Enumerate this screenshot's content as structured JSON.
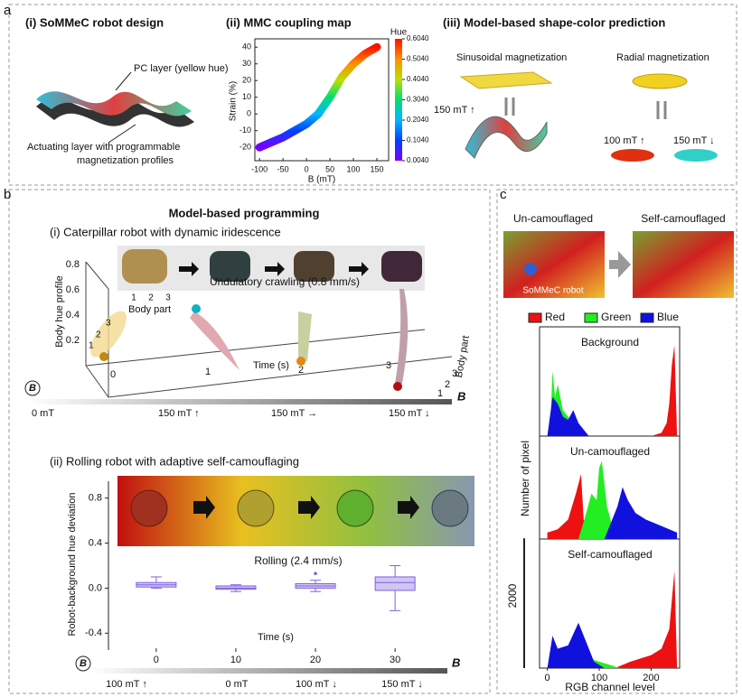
{
  "figure": {
    "a": {
      "label": "a",
      "i": {
        "title": "(i) SoMMeC robot design",
        "pc_layer": "PC layer (yellow hue)",
        "actuating": [
          "Actuating layer with programmable",
          "magnetization profiles"
        ]
      },
      "iii": {
        "title": "(iii) Model-based  shape-color prediction",
        "sinusoidal": "Sinusoidal magnetization",
        "radial": "Radial magnetization",
        "field_1": "150 mT ↑",
        "field_2": "100 mT ↑",
        "field_3": "150 mT ↓"
      }
    },
    "b": {
      "label": "b",
      "title": "Model-based programming",
      "i": {
        "title": "(i) Caterpillar robot with dynamic iridescence",
        "body_part": "Body part",
        "parts": [
          "1",
          "2",
          "3"
        ],
        "crawling": "Undulatory crawling (0.8 mm/s)",
        "y_label": "Body hue profile",
        "y_ticks": [
          "0.2",
          "0.4",
          "0.6",
          "0.8"
        ],
        "x_label": "Time (s)",
        "x_ticks": [
          "0",
          "1",
          "2",
          "3"
        ],
        "z_label": "Body part",
        "z_ticks": [
          "1",
          "2",
          "3"
        ],
        "marker_labels": [
          "1",
          "2",
          "3"
        ],
        "rotation_symbol": "B",
        "fields": [
          "0 mT",
          "150 mT ↑",
          "150 mT →",
          "150 mT ↓"
        ],
        "field_symbol": "B"
      },
      "ii": {
        "rolling": "Rolling (2.4 mm/s)",
        "rotation_symbol": "B",
        "fields": [
          "100 mT ↑",
          "0 mT",
          "100 mT ↓",
          "150 mT ↓"
        ],
        "field_symbol": "B"
      }
    },
    "c": {
      "label": "c",
      "uncamo": "Un-camouflaged",
      "selfcamo": "Self-camouflaged",
      "robot": "SoMMeC robot"
    }
  },
  "chart_data": [
    {
      "type": "line",
      "title": "(ii) MMC coupling map",
      "x_label": "B (mT)",
      "y_label": "Strain (%)",
      "x": [
        -100,
        -75,
        -50,
        -25,
        0,
        25,
        50,
        75,
        100,
        125,
        150
      ],
      "values": [
        -20,
        -17,
        -14,
        -10,
        -6,
        0,
        10,
        22,
        30,
        36,
        40
      ],
      "xlim": [
        -110,
        175
      ],
      "xticks": [
        -100,
        -50,
        0,
        50,
        100,
        150
      ],
      "ylim": [
        -28,
        45
      ],
      "yticks": [
        -20,
        -10,
        0,
        10,
        20,
        30,
        40
      ],
      "colorbar": {
        "title": "Hue",
        "lim": [
          0.004,
          0.604
        ],
        "ticks": [
          {
            "value": 0.604,
            "label": "0.6040"
          },
          {
            "value": 0.504,
            "label": "0.5040"
          },
          {
            "value": 0.404,
            "label": "0.4040"
          },
          {
            "value": 0.304,
            "label": "0.3040"
          },
          {
            "value": 0.204,
            "label": "0.2040"
          },
          {
            "value": 0.104,
            "label": "0.1040"
          },
          {
            "value": 0.004,
            "label": "0.0040"
          }
        ],
        "colors": [
          "#7a00ff",
          "#0040ff",
          "#00b8ff",
          "#00e070",
          "#b8e000",
          "#ff9000",
          "#ff1000"
        ]
      }
    },
    {
      "type": "box",
      "title": "(ii) Rolling robot with adaptive self-camouflaging",
      "x_label": "Time (s)",
      "y_label": "Robot-background hue deviation",
      "x": [
        0,
        10,
        20,
        30
      ],
      "xlim": [
        -6,
        36
      ],
      "xticks": [
        0,
        10,
        20,
        30
      ],
      "ylim": [
        -0.55,
        0.95
      ],
      "yticks": [
        -0.4,
        {
          "value": 0,
          "label": "0.0"
        },
        0.4,
        0.8
      ],
      "color": "#8060e0",
      "fill": "#cfc6f4",
      "boxes": [
        {
          "min": 0,
          "q1": 0.01,
          "median": 0.03,
          "q3": 0.05,
          "max": 0.1
        },
        {
          "min": -0.03,
          "q1": -0.01,
          "median": 0,
          "q3": 0.02,
          "max": 0.03
        },
        {
          "min": -0.03,
          "q1": 0,
          "median": 0.02,
          "q3": 0.04,
          "max": 0.07,
          "outliers": [
            0.13
          ]
        },
        {
          "min": -0.2,
          "q1": -0.02,
          "median": 0.05,
          "q3": 0.1,
          "max": 0.2
        }
      ]
    },
    {
      "type": "area",
      "title": "Background",
      "xlim": [
        -15,
        255
      ],
      "ylim": [
        0,
        1600
      ],
      "series": [
        {
          "name": "Red",
          "color": "#ee1111",
          "x": [
            200,
            220,
            230,
            235,
            240,
            245,
            250
          ],
          "values": [
            0,
            50,
            200,
            500,
            1100,
            1400,
            0
          ]
        },
        {
          "name": "Green",
          "color": "#22ee22",
          "x": [
            5,
            10,
            15,
            20,
            30,
            40,
            50,
            60,
            70
          ],
          "values": [
            0,
            1000,
            600,
            800,
            400,
            300,
            200,
            100,
            0
          ]
        },
        {
          "name": "Blue",
          "color": "#1111dd",
          "x": [
            0,
            10,
            20,
            30,
            40,
            50,
            60,
            70,
            80
          ],
          "values": [
            0,
            600,
            500,
            300,
            250,
            400,
            200,
            100,
            0
          ]
        }
      ]
    },
    {
      "type": "area",
      "title": "Un-camouflaged",
      "y_label": "Number of pixel",
      "xlim": [
        -15,
        255
      ],
      "ylim": [
        0,
        1600
      ],
      "series": [
        {
          "color": "#ee1111",
          "x": [
            0,
            20,
            40,
            55,
            65,
            70,
            80,
            100
          ],
          "values": [
            100,
            150,
            300,
            700,
            1000,
            300,
            100,
            0
          ]
        },
        {
          "color": "#22ee22",
          "x": [
            60,
            75,
            85,
            95,
            100,
            105,
            115,
            125,
            140
          ],
          "values": [
            0,
            400,
            700,
            600,
            1100,
            1200,
            500,
            200,
            0
          ]
        },
        {
          "color": "#1111dd",
          "x": [
            110,
            125,
            135,
            145,
            155,
            170,
            190,
            220,
            250
          ],
          "values": [
            0,
            300,
            500,
            800,
            600,
            400,
            300,
            200,
            100
          ]
        }
      ]
    },
    {
      "type": "area",
      "title": "Self-camouflaged",
      "x_label": "RGB channel level",
      "xlim": [
        -15,
        255
      ],
      "xticks": [
        0,
        100,
        200
      ],
      "ylim": [
        0,
        1600
      ],
      "scale_bar": 2000,
      "series": [
        {
          "color": "#ee1111",
          "x": [
            130,
            160,
            200,
            220,
            235,
            245,
            250
          ],
          "values": [
            0,
            100,
            200,
            300,
            600,
            1500,
            0
          ]
        },
        {
          "color": "#22ee22",
          "x": [
            0,
            20,
            50,
            80,
            120,
            140
          ],
          "values": [
            0,
            200,
            300,
            150,
            50,
            0
          ]
        },
        {
          "color": "#1111dd",
          "x": [
            0,
            10,
            20,
            40,
            60,
            75,
            90,
            110
          ],
          "values": [
            0,
            500,
            300,
            350,
            700,
            400,
            100,
            0
          ]
        }
      ]
    }
  ]
}
